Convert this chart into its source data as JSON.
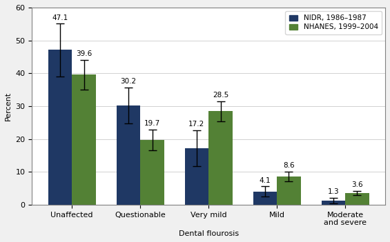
{
  "categories": [
    "Unaffected",
    "Questionable",
    "Very mild",
    "Mild",
    "Moderate\nand severe"
  ],
  "nidr_values": [
    47.1,
    30.2,
    17.2,
    4.1,
    1.3
  ],
  "nhanes_values": [
    39.6,
    19.7,
    28.5,
    8.6,
    3.6
  ],
  "nidr_errors": [
    8.0,
    5.5,
    5.5,
    1.5,
    0.8
  ],
  "nhanes_errors": [
    4.5,
    3.2,
    3.0,
    1.5,
    0.7
  ],
  "nidr_color": "#1F3864",
  "nhanes_color": "#538135",
  "bar_width": 0.35,
  "ylim": [
    0,
    60
  ],
  "yticks": [
    0,
    10,
    20,
    30,
    40,
    50,
    60
  ],
  "xlabel": "Dental flourosis",
  "ylabel": "Percent",
  "legend_nidr": "NIDR, 1986–1987",
  "legend_nhanes": "NHANES, 1999–2004",
  "background_color": "#f0f0f0",
  "plot_bg_color": "#ffffff",
  "title_fontsize": 9,
  "label_fontsize": 8,
  "tick_fontsize": 8,
  "value_fontsize": 7.5
}
